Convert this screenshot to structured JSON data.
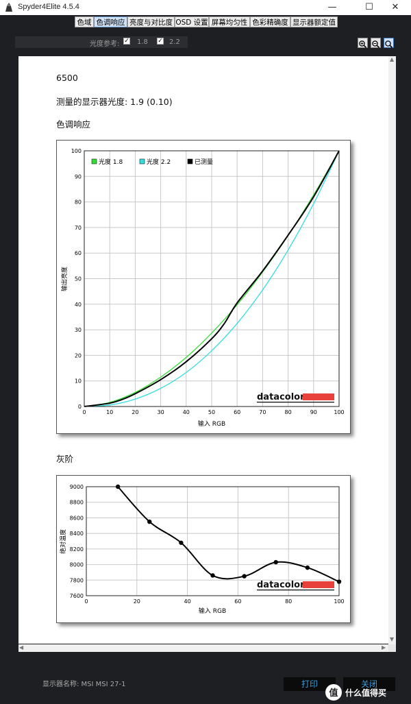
{
  "window": {
    "title": "Spyder4Elite 4.5.4",
    "minimize": "—",
    "maximize": "☐",
    "close": "✕"
  },
  "tabs": [
    {
      "label": "色域"
    },
    {
      "label": "色调响应",
      "active": true
    },
    {
      "label": "亮度与对比度"
    },
    {
      "label": "OSD 设置"
    },
    {
      "label": "屏幕均匀性"
    },
    {
      "label": "色彩精确度"
    },
    {
      "label": "显示器额定值"
    }
  ],
  "toolbar": {
    "reference_label": "光度参考:",
    "option_a": {
      "checked": true,
      "value": "1.8"
    },
    "option_b": {
      "checked": true,
      "value": "2.2"
    },
    "check_glyph": "✓",
    "zoom_in_icon": "zoom-in-icon",
    "zoom_out_icon": "zoom-out-icon",
    "zoom_fit_icon": "zoom-fit-icon"
  },
  "report": {
    "white_point": "6500",
    "gamma_line": "测量的显示器光度:  1.9 (0.10)",
    "tone_heading": "色调响应",
    "gray_heading": "灰阶"
  },
  "chart_data": [
    {
      "type": "line",
      "xlabel": "输入 RGB",
      "ylabel": "输出亮度",
      "xlim": [
        0,
        100
      ],
      "ylim": [
        0,
        100
      ],
      "xticks": [
        0,
        10,
        20,
        30,
        40,
        50,
        60,
        70,
        80,
        90,
        100
      ],
      "yticks": [
        0,
        10,
        20,
        30,
        40,
        50,
        60,
        70,
        80,
        90,
        100
      ],
      "grid": true,
      "legend_position": "top-left",
      "brand": "datacolor",
      "series": [
        {
          "name": "光度 1.8",
          "color": "#33dd33",
          "x": [
            0,
            10,
            20,
            30,
            40,
            50,
            60,
            70,
            80,
            90,
            100
          ],
          "y": [
            0,
            1.6,
            5.5,
            11.5,
            19.2,
            28.7,
            39.8,
            52.6,
            66.9,
            82.7,
            100
          ]
        },
        {
          "name": "光度 2.2",
          "color": "#33dddd",
          "x": [
            0,
            10,
            20,
            30,
            40,
            50,
            60,
            70,
            80,
            90,
            100
          ],
          "y": [
            0,
            0.6,
            2.9,
            7.1,
            13.3,
            21.8,
            32.5,
            45.6,
            61.2,
            79.3,
            100
          ]
        },
        {
          "name": "已测量",
          "color": "#000000",
          "x": [
            0,
            10,
            15,
            20,
            30,
            40,
            50,
            55,
            60,
            70,
            80,
            90,
            100
          ],
          "y": [
            0,
            1.3,
            2.8,
            5,
            10.5,
            17.5,
            26.5,
            32.5,
            40.5,
            53,
            67,
            82,
            100
          ]
        }
      ]
    },
    {
      "type": "line",
      "xlabel": "输入 RGB",
      "ylabel": "绝对温度",
      "xlim": [
        0,
        100
      ],
      "ylim": [
        7600,
        9000
      ],
      "xticks": [
        0,
        20,
        40,
        60,
        80,
        100
      ],
      "yticks": [
        7600,
        7800,
        8000,
        8200,
        8400,
        8600,
        8800,
        9000
      ],
      "grid": true,
      "brand": "datacolor",
      "series": [
        {
          "color": "#000000",
          "x": [
            12.5,
            25,
            37.5,
            50,
            62.5,
            75,
            87.5,
            100
          ],
          "y": [
            9000,
            8550,
            8280,
            7860,
            7850,
            8030,
            7960,
            7780
          ]
        }
      ]
    }
  ],
  "footer": {
    "monitor_label": "显示器名称: MSI MSI 27-1",
    "print_button": "打印",
    "close_button": "关闭",
    "watermark": "值 什么值得买"
  }
}
